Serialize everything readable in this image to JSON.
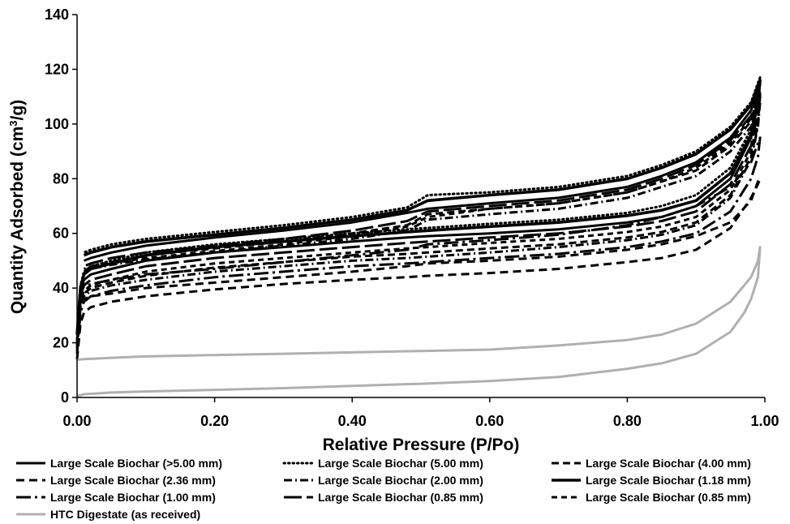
{
  "chart_data": {
    "type": "line",
    "xlabel": "Relative Pressure (P/Po)",
    "ylabel_main": "Quantity Adsorbed (cm",
    "ylabel_sup": "3",
    "ylabel_tail": "/g)",
    "xlim": [
      0,
      1
    ],
    "ylim": [
      0,
      140
    ],
    "xticks": [
      "0.00",
      "0.20",
      "0.40",
      "0.60",
      "0.80",
      "1.00"
    ],
    "yticks": [
      "0",
      "20",
      "40",
      "60",
      "80",
      "100",
      "120",
      "140"
    ],
    "grid": false,
    "legend_position": "bottom",
    "series": [
      {
        "name": "Large Scale Biochar (>5.00 mm)",
        "color": "#000000",
        "dash": "solid",
        "x": [
          0.0,
          0.005,
          0.01,
          0.02,
          0.05,
          0.1,
          0.2,
          0.3,
          0.4,
          0.48,
          0.51,
          0.6,
          0.7,
          0.8,
          0.85,
          0.9,
          0.95,
          0.98,
          0.99,
          0.993,
          0.99,
          0.98,
          0.95,
          0.9,
          0.85,
          0.8,
          0.7,
          0.6,
          0.51,
          0.48,
          0.4,
          0.3,
          0.2,
          0.1,
          0.05,
          0.02,
          0.01
        ],
        "y": [
          20,
          38,
          43,
          45,
          47,
          50,
          53,
          55,
          57,
          58.5,
          59,
          60,
          61.5,
          64,
          66,
          70,
          80,
          95,
          108,
          115,
          113,
          105,
          95,
          86,
          81,
          77,
          73,
          71,
          69,
          67.5,
          64,
          61,
          58.5,
          55.5,
          53,
          51,
          50
        ]
      },
      {
        "name": "Large Scale Biochar (5.00 mm)",
        "color": "#000000",
        "dash": "dotted",
        "x": [
          0.0,
          0.005,
          0.01,
          0.02,
          0.05,
          0.1,
          0.2,
          0.3,
          0.4,
          0.48,
          0.51,
          0.6,
          0.7,
          0.8,
          0.85,
          0.9,
          0.95,
          0.98,
          0.99,
          0.993,
          0.99,
          0.98,
          0.95,
          0.9,
          0.85,
          0.8,
          0.7,
          0.6,
          0.51,
          0.48,
          0.4,
          0.3,
          0.2,
          0.1,
          0.05,
          0.02,
          0.01
        ],
        "y": [
          24,
          41,
          46,
          48,
          50,
          53,
          56,
          58,
          60,
          61.5,
          62,
          63.5,
          65,
          67.5,
          70,
          74,
          84,
          98,
          110,
          117,
          115,
          108,
          99,
          90,
          85,
          81,
          77,
          75,
          74,
          69.5,
          66,
          63,
          60.5,
          58,
          56,
          54,
          53
        ]
      },
      {
        "name": "Large Scale Biochar (4.00 mm)",
        "color": "#000000",
        "dash": "dash",
        "x": [
          0.0,
          0.005,
          0.01,
          0.02,
          0.05,
          0.1,
          0.2,
          0.3,
          0.4,
          0.48,
          0.51,
          0.6,
          0.7,
          0.8,
          0.85,
          0.9,
          0.95,
          0.98,
          0.99,
          0.993,
          0.99,
          0.98,
          0.95,
          0.9,
          0.85,
          0.8,
          0.7,
          0.6,
          0.51,
          0.48,
          0.4,
          0.3,
          0.2,
          0.1,
          0.05,
          0.02,
          0.01
        ],
        "y": [
          18,
          34,
          38,
          40,
          42,
          44.5,
          47.5,
          49.5,
          51.5,
          52.5,
          53,
          54.5,
          56,
          58.5,
          60.5,
          64,
          74,
          88,
          100,
          110,
          108,
          101,
          92,
          83,
          79,
          75,
          71,
          69,
          67,
          63,
          60,
          57,
          54.5,
          52,
          49.5,
          48,
          47
        ]
      },
      {
        "name": "Large Scale Biochar (2.36 mm)",
        "color": "#000000",
        "dash": "longdash",
        "x": [
          0.0,
          0.005,
          0.01,
          0.02,
          0.05,
          0.1,
          0.2,
          0.3,
          0.4,
          0.48,
          0.51,
          0.6,
          0.7,
          0.8,
          0.85,
          0.9,
          0.95,
          0.98,
          0.99,
          0.993,
          0.99,
          0.98,
          0.95,
          0.9,
          0.85,
          0.8,
          0.7,
          0.6,
          0.51,
          0.48,
          0.4,
          0.3,
          0.2,
          0.1,
          0.05,
          0.02,
          0.01
        ],
        "y": [
          14,
          27,
          31,
          33,
          35,
          37,
          39.5,
          41.5,
          43,
          44,
          44.5,
          45.5,
          47,
          49.5,
          51,
          54,
          62,
          73,
          78,
          80,
          79,
          72,
          64,
          59,
          56,
          54,
          51.5,
          50,
          49,
          48,
          46,
          44,
          42,
          40,
          38,
          37,
          36
        ]
      },
      {
        "name": "Large Scale Biochar (2.00 mm)",
        "color": "#000000",
        "dash": "dashdot",
        "x": [
          0.0,
          0.005,
          0.01,
          0.02,
          0.05,
          0.1,
          0.2,
          0.3,
          0.4,
          0.48,
          0.51,
          0.6,
          0.7,
          0.8,
          0.85,
          0.9,
          0.95,
          0.98,
          0.99,
          0.993,
          0.99,
          0.98,
          0.95,
          0.9,
          0.85,
          0.8,
          0.7,
          0.6,
          0.51,
          0.48,
          0.4,
          0.3,
          0.2,
          0.1,
          0.05,
          0.02,
          0.01
        ],
        "y": [
          17,
          33,
          37,
          39,
          41,
          43,
          46,
          48,
          50,
          51,
          51.5,
          53,
          55,
          57.5,
          59.5,
          63,
          73,
          87,
          99,
          108,
          106,
          99,
          90,
          81,
          77,
          73,
          69,
          67,
          65,
          61,
          58,
          55.5,
          53,
          50.5,
          48.5,
          47,
          46
        ]
      },
      {
        "name": "Large Scale Biochar (1.18 mm)",
        "color": "#000000",
        "dash": "solidthick",
        "x": [
          0.0,
          0.005,
          0.01,
          0.02,
          0.05,
          0.1,
          0.2,
          0.3,
          0.4,
          0.48,
          0.51,
          0.6,
          0.7,
          0.8,
          0.85,
          0.9,
          0.95,
          0.98,
          0.99,
          0.993,
          0.99,
          0.98,
          0.95,
          0.9,
          0.85,
          0.8,
          0.7,
          0.6,
          0.51,
          0.48,
          0.4,
          0.3,
          0.2,
          0.1,
          0.05,
          0.02,
          0.01
        ],
        "y": [
          23,
          40,
          45,
          47,
          49,
          52,
          55,
          57,
          59,
          60.5,
          61,
          62.5,
          64,
          66.5,
          68.5,
          72,
          82,
          96,
          108,
          116,
          114,
          107,
          98,
          89,
          84,
          80,
          76,
          74,
          72,
          68.5,
          65,
          62,
          59.5,
          57,
          55,
          53,
          52
        ]
      },
      {
        "name": "Large Scale Biochar (1.00 mm)",
        "color": "#000000",
        "dash": "longdashdot",
        "x": [
          0.0,
          0.005,
          0.01,
          0.02,
          0.05,
          0.1,
          0.2,
          0.3,
          0.4,
          0.48,
          0.51,
          0.6,
          0.7,
          0.8,
          0.85,
          0.9,
          0.95,
          0.98,
          0.99,
          0.993,
          0.99,
          0.98,
          0.95,
          0.9,
          0.85,
          0.8,
          0.7,
          0.6,
          0.51,
          0.48,
          0.4,
          0.3,
          0.2,
          0.1,
          0.05,
          0.02,
          0.01
        ],
        "y": [
          16,
          31,
          35,
          37,
          39,
          41,
          44,
          46,
          48,
          49,
          49.5,
          51,
          52.5,
          55,
          57,
          60,
          68,
          80,
          88,
          95,
          93,
          86,
          77,
          70,
          66,
          63,
          59.5,
          57.5,
          56,
          54,
          52,
          49.5,
          47,
          45,
          43,
          41.5,
          40.5
        ]
      },
      {
        "name": "Large Scale Biochar (0.85 mm)",
        "color": "#000000",
        "dash": "longdashmed",
        "x": [
          0.0,
          0.005,
          0.01,
          0.02,
          0.05,
          0.1,
          0.2,
          0.3,
          0.4,
          0.48,
          0.51,
          0.6,
          0.7,
          0.8,
          0.85,
          0.9,
          0.95,
          0.98,
          0.99,
          0.993,
          0.99,
          0.98,
          0.95,
          0.9,
          0.85,
          0.8,
          0.7,
          0.6,
          0.51,
          0.48,
          0.4,
          0.3,
          0.2,
          0.1,
          0.05,
          0.02,
          0.01
        ],
        "y": [
          21,
          37,
          41,
          43,
          45,
          48,
          51,
          53,
          55,
          56.5,
          57,
          58.5,
          60,
          62.5,
          64.5,
          68,
          78,
          92,
          104,
          112,
          110,
          103,
          94,
          85,
          80,
          76,
          72,
          70,
          68,
          64.5,
          61,
          58,
          55.5,
          53,
          51,
          49,
          48
        ]
      },
      {
        "name": "Large Scale Biochar (0.85 mm)",
        "color": "#000000",
        "dash": "shortdash",
        "x": [
          0.0,
          0.005,
          0.01,
          0.02,
          0.05,
          0.1,
          0.2,
          0.3,
          0.4,
          0.48,
          0.51,
          0.6,
          0.7,
          0.8,
          0.85,
          0.9,
          0.95,
          0.98,
          0.99,
          0.993,
          0.99,
          0.98,
          0.95,
          0.9,
          0.85,
          0.8,
          0.7,
          0.6,
          0.51,
          0.48,
          0.4,
          0.3,
          0.2,
          0.1,
          0.05,
          0.02,
          0.01
        ],
        "y": [
          19,
          35,
          39,
          41,
          43,
          46,
          49,
          51,
          53,
          54.5,
          55,
          56.5,
          58,
          60.5,
          62.5,
          66,
          76,
          90,
          102,
          111,
          109,
          102,
          93,
          84,
          79,
          75,
          71,
          69,
          66,
          62.5,
          59,
          56,
          53.5,
          51,
          49,
          47.5,
          46.5
        ]
      },
      {
        "name": "HTC Digestate (as received)",
        "color": "#b0b0b0",
        "dash": "solidgray",
        "x": [
          0.0,
          0.01,
          0.05,
          0.1,
          0.2,
          0.3,
          0.4,
          0.5,
          0.6,
          0.7,
          0.8,
          0.85,
          0.9,
          0.95,
          0.97,
          0.98,
          0.99,
          0.993,
          0.99,
          0.98,
          0.95,
          0.9,
          0.85,
          0.8,
          0.7,
          0.6,
          0.5,
          0.4,
          0.3,
          0.2,
          0.1,
          0.05,
          0.01,
          0.0
        ],
        "y": [
          0.5,
          1.2,
          1.8,
          2.2,
          2.8,
          3.4,
          4.2,
          5.0,
          6.0,
          7.5,
          10.5,
          12.5,
          16,
          24,
          31,
          36,
          44,
          55,
          50,
          44,
          35,
          27,
          23,
          21,
          19,
          17.5,
          17,
          16.5,
          16,
          15.5,
          15,
          14.5,
          14,
          13.8
        ]
      }
    ]
  }
}
